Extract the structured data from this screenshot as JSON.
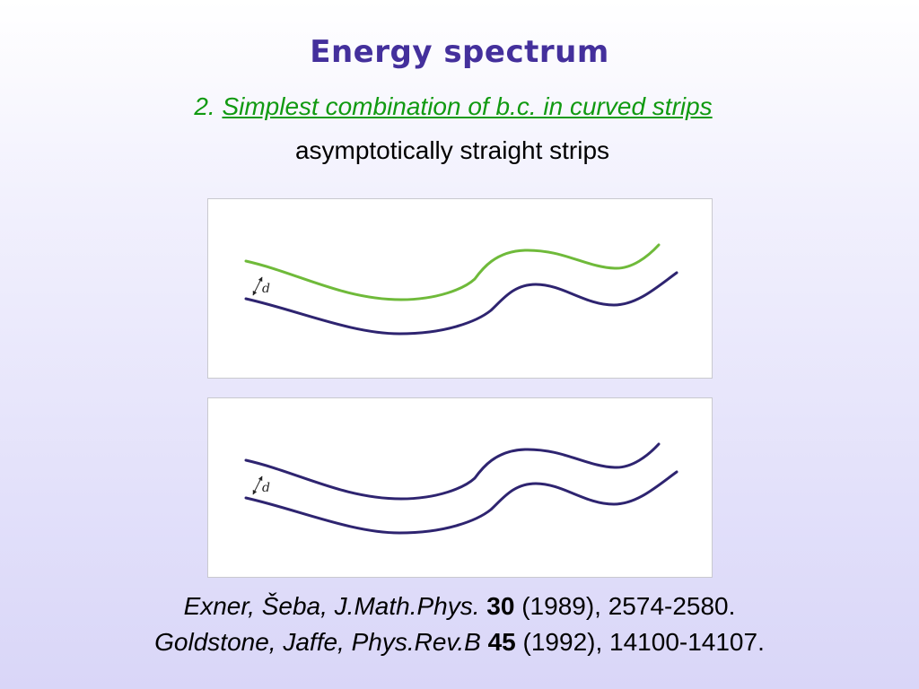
{
  "slide": {
    "title": "Energy spectrum",
    "subtitle_number": "2.",
    "subtitle_text": "Simplest combination of b.c. in curved strips",
    "caption": "asymptotically straight strips"
  },
  "figures": [
    {
      "width_label": "d",
      "upper_curve_color": "#6fba3a",
      "lower_curve_color": "#2e2470"
    },
    {
      "width_label": "d",
      "upper_curve_color": "#2e2470",
      "lower_curve_color": "#2e2470"
    }
  ],
  "references": [
    {
      "authors": "Exner, Šeba, J.Math.Phys.",
      "volume": "30",
      "details": "(1989), 2574-2580."
    },
    {
      "authors": "Goldstone, Jaffe, Phys.Rev.B",
      "volume": "45",
      "details": "(1992), 14100-14107."
    }
  ],
  "colors": {
    "title": "#44309c",
    "subtitle": "#119a11",
    "dirichlet_curve": "#2e2470",
    "neumann_curve": "#6fba3a"
  }
}
